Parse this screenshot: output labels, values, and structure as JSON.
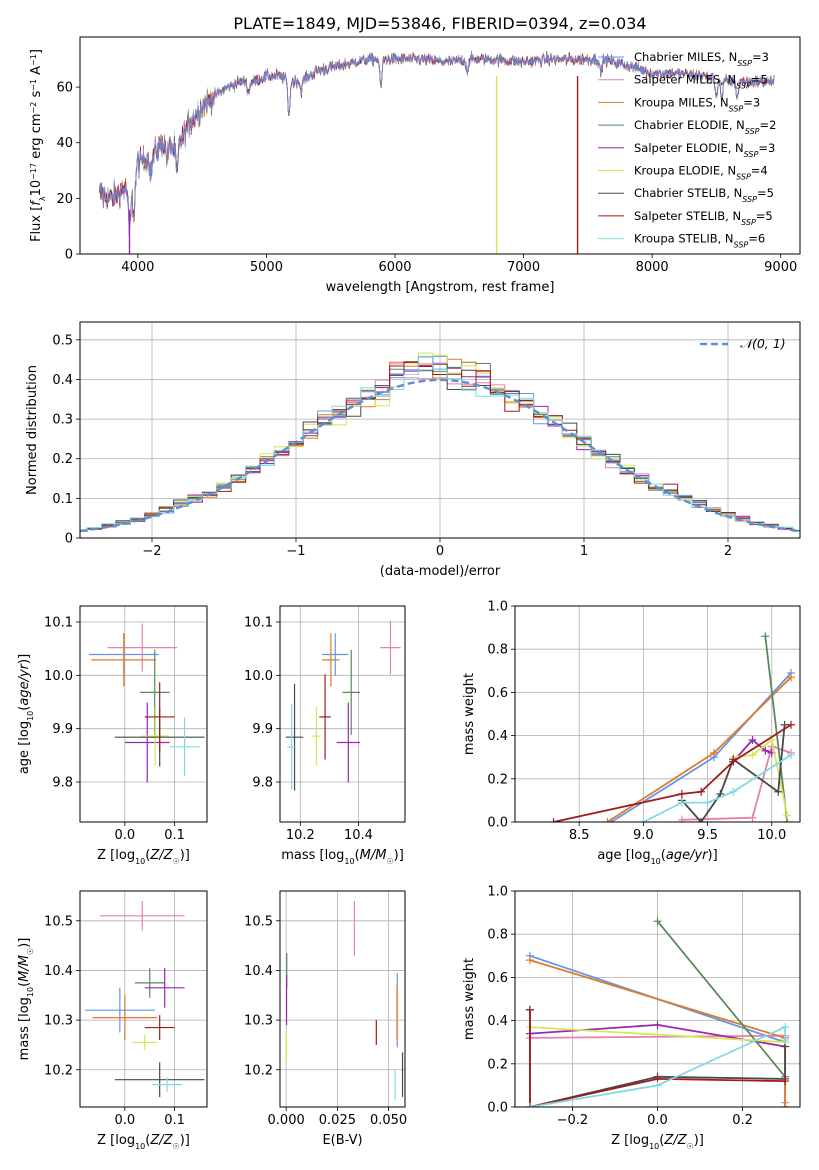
{
  "figure_title": "PLATE=1849, MJD=53846, FIBERID=0394, z=0.034",
  "models": [
    {
      "name": "Chabrier MILES",
      "n": "3",
      "color": "#6495ed"
    },
    {
      "name": "Salpeter MILES",
      "n": "5",
      "color": "#e87fb3"
    },
    {
      "name": "Kroupa MILES",
      "n": "3",
      "color": "#e07b26"
    },
    {
      "name": "Chabrier ELODIE",
      "n": "2",
      "color": "#5a8a5e"
    },
    {
      "name": "Salpeter ELODIE",
      "n": "3",
      "color": "#9b27b0"
    },
    {
      "name": "Kroupa ELODIE",
      "n": "4",
      "color": "#d6e654"
    },
    {
      "name": "Chabrier STELIB",
      "n": "5",
      "color": "#484848"
    },
    {
      "name": "Salpeter STELIB",
      "n": "5",
      "color": "#a01c1c"
    },
    {
      "name": "Kroupa STELIB",
      "n": "6",
      "color": "#7fdbe0"
    }
  ],
  "chart_data": [
    {
      "id": "spectrum",
      "type": "line",
      "xlabel": "wavelength [Angstrom, rest frame]",
      "ylabel": "Flux [f_λ10^-17 erg cm^-2 s^-1 A^-1]",
      "xlim": [
        3550,
        9150
      ],
      "ylim": [
        0,
        78
      ],
      "xticks": [
        4000,
        5000,
        6000,
        7000,
        8000,
        9000
      ],
      "yticks": [
        0,
        20,
        40,
        60
      ],
      "grid": false,
      "legend": "top-right",
      "series": "one spectrum per model (9 overlapping lines)",
      "continuum_points": [
        [
          3700,
          22
        ],
        [
          3800,
          20
        ],
        [
          3900,
          24
        ],
        [
          3950,
          21
        ],
        [
          4000,
          33
        ],
        [
          4100,
          35
        ],
        [
          4200,
          40
        ],
        [
          4300,
          38
        ],
        [
          4400,
          47
        ],
        [
          4500,
          53
        ],
        [
          4600,
          57
        ],
        [
          4700,
          60
        ],
        [
          4800,
          62
        ],
        [
          4900,
          62
        ],
        [
          5000,
          64
        ],
        [
          5100,
          64
        ],
        [
          5200,
          62
        ],
        [
          5300,
          63
        ],
        [
          5400,
          66
        ],
        [
          5500,
          67
        ],
        [
          5600,
          68
        ],
        [
          5700,
          69
        ],
        [
          5800,
          70
        ],
        [
          5900,
          70
        ],
        [
          6000,
          70
        ],
        [
          6200,
          70
        ],
        [
          6400,
          69
        ],
        [
          6600,
          70
        ],
        [
          6800,
          70
        ],
        [
          7000,
          69
        ],
        [
          7200,
          70
        ],
        [
          7400,
          70
        ],
        [
          7600,
          70
        ],
        [
          7800,
          68
        ],
        [
          8000,
          65
        ],
        [
          8200,
          65
        ],
        [
          8400,
          64
        ],
        [
          8600,
          62
        ],
        [
          8800,
          62
        ],
        [
          8950,
          62
        ]
      ],
      "absorption_features": [
        [
          3934,
          13
        ],
        [
          3969,
          11
        ],
        [
          4102,
          6
        ],
        [
          4227,
          5
        ],
        [
          4304,
          9
        ],
        [
          4861,
          4
        ],
        [
          5175,
          12
        ],
        [
          5270,
          4
        ],
        [
          5890,
          10
        ],
        [
          6563,
          4
        ],
        [
          7600,
          5
        ],
        [
          8498,
          6
        ],
        [
          8542,
          7
        ],
        [
          8662,
          6
        ]
      ],
      "deep_dropouts": [
        [
          3935,
          0
        ],
        [
          6790,
          0
        ],
        [
          7420,
          0
        ]
      ]
    },
    {
      "id": "residuals",
      "type": "histogram",
      "xlabel": "(data-model)/error",
      "ylabel": "Normed distribution",
      "xlim": [
        -2.5,
        2.5
      ],
      "ylim": [
        0,
        0.545
      ],
      "xticks": [
        -2,
        -1,
        0,
        1,
        2
      ],
      "yticks": [
        0.0,
        0.1,
        0.2,
        0.3,
        0.4,
        0.5
      ],
      "grid": true,
      "legend": "top-right",
      "reference_label": "𝒩(0, 1)",
      "reference_curve": "normal(0,1) pdf",
      "bin_width": 0.1,
      "series_note": "one step histogram per model"
    },
    {
      "id": "age_vs_Z",
      "type": "scatter",
      "xlabel": "Z [log10(Z/Z☉)]",
      "ylabel": "age  [log10(age/yr)]",
      "xlim": [
        -0.09,
        0.165
      ],
      "ylim": [
        9.725,
        10.13
      ],
      "xticks": [
        0.0,
        0.1
      ],
      "xticklabels": [
        "0.0",
        "0.1"
      ],
      "yticks": [
        9.8,
        9.9,
        10.0,
        10.1
      ],
      "yticklabels": [
        "9.8",
        "9.9",
        "10.0",
        "10.1"
      ],
      "grid": true,
      "points": [
        {
          "x": -0.002,
          "y": 10.039,
          "xerr": 0.07,
          "yerr": 0.04
        },
        {
          "x": 0.035,
          "y": 10.052,
          "xerr": 0.07,
          "yerr": 0.045
        },
        {
          "x": -0.002,
          "y": 10.029,
          "xerr": 0.065,
          "yerr": 0.05
        },
        {
          "x": 0.06,
          "y": 9.968,
          "xerr": 0.03,
          "yerr": 0.08
        },
        {
          "x": 0.045,
          "y": 9.874,
          "xerr": 0.045,
          "yerr": 0.075
        },
        {
          "x": 0.061,
          "y": 9.886,
          "xerr": 0.027,
          "yerr": 0.055
        },
        {
          "x": 0.07,
          "y": 9.884,
          "xerr": 0.09,
          "yerr": 0.055
        },
        {
          "x": 0.07,
          "y": 9.922,
          "xerr": 0.03,
          "yerr": 0.065
        },
        {
          "x": 0.12,
          "y": 9.866,
          "xerr": 0.03,
          "yerr": 0.055
        }
      ]
    },
    {
      "id": "age_vs_mass",
      "type": "scatter",
      "xlabel": "mass [log10(M/M☉)]",
      "ylabel": "",
      "xlim": [
        10.13,
        10.56
      ],
      "ylim": [
        9.725,
        10.13
      ],
      "xticks": [
        10.2,
        10.4
      ],
      "xticklabels": [
        "10.2",
        "10.4"
      ],
      "yticks": [
        9.8,
        9.9,
        10.0,
        10.1
      ],
      "yticklabels": [
        "9.8",
        "9.9",
        "10.0",
        "10.1"
      ],
      "grid": true,
      "points": [
        {
          "x": 10.32,
          "y": 10.039,
          "xerr": 0.045,
          "yerr": 0.04
        },
        {
          "x": 10.51,
          "y": 10.052,
          "xerr": 0.035,
          "yerr": 0.05
        },
        {
          "x": 10.305,
          "y": 10.029,
          "xerr": 0.03,
          "yerr": 0.05
        },
        {
          "x": 10.375,
          "y": 9.968,
          "xerr": 0.03,
          "yerr": 0.08
        },
        {
          "x": 10.365,
          "y": 9.874,
          "xerr": 0.04,
          "yerr": 0.075
        },
        {
          "x": 10.255,
          "y": 9.886,
          "xerr": 0.015,
          "yerr": 0.055
        },
        {
          "x": 10.18,
          "y": 9.884,
          "xerr": 0.03,
          "yerr": 0.1
        },
        {
          "x": 10.285,
          "y": 9.922,
          "xerr": 0.02,
          "yerr": 0.08
        },
        {
          "x": 10.17,
          "y": 9.866,
          "xerr": 0.015,
          "yerr": 0.08
        }
      ]
    },
    {
      "id": "weight_vs_age",
      "type": "line",
      "xlabel": "age  [log10(age/yr)]",
      "ylabel": "mass weight",
      "xlim": [
        8.0,
        10.22
      ],
      "ylim": [
        0,
        1
      ],
      "xticks": [
        8.5,
        9.0,
        9.5,
        10.0
      ],
      "xticklabels": [
        "8.5",
        "9.0",
        "9.5",
        "10.0"
      ],
      "yticks": [
        0.0,
        0.2,
        0.4,
        0.6,
        0.8,
        1.0
      ],
      "yticklabels": [
        "0.0",
        "0.2",
        "0.4",
        "0.6",
        "0.8",
        "1.0"
      ],
      "grid": true,
      "series": [
        {
          "x": [
            8.75,
            9.55,
            10.15
          ],
          "y": [
            0.0,
            0.3,
            0.69
          ]
        },
        {
          "x": [
            9.3,
            9.85,
            10.0,
            10.15
          ],
          "y": [
            0.01,
            0.02,
            0.35,
            0.32
          ]
        },
        {
          "x": [
            8.72,
            9.55,
            10.15
          ],
          "y": [
            0.0,
            0.32,
            0.67
          ]
        },
        {
          "x": [
            9.95,
            10.12
          ],
          "y": [
            0.86,
            0.0
          ]
        },
        {
          "x": [
            9.7,
            9.85,
            9.95,
            10.0
          ],
          "y": [
            0.28,
            0.38,
            0.33,
            0.32
          ]
        },
        {
          "x": [
            9.7,
            9.85,
            10.0,
            10.12
          ],
          "y": [
            0.3,
            0.31,
            0.38,
            0.03
          ]
        },
        {
          "x": [
            9.3,
            9.45,
            9.6,
            9.7,
            10.05,
            10.1
          ],
          "y": [
            0.1,
            0.0,
            0.13,
            0.29,
            0.14,
            0.45
          ]
        },
        {
          "x": [
            8.3,
            9.3,
            9.45,
            9.7,
            10.15
          ],
          "y": [
            0.0,
            0.13,
            0.14,
            0.28,
            0.45
          ]
        },
        {
          "x": [
            9.0,
            9.3,
            9.5,
            9.7,
            10.15
          ],
          "y": [
            0.0,
            0.09,
            0.09,
            0.14,
            0.31
          ]
        }
      ]
    },
    {
      "id": "mass_vs_Z",
      "type": "scatter",
      "xlabel": "Z [log10(Z/Z☉)]",
      "ylabel": "mass [log10(M/M☉)]",
      "xlim": [
        -0.09,
        0.165
      ],
      "ylim": [
        10.125,
        10.56
      ],
      "xticks": [
        0.0,
        0.1
      ],
      "xticklabels": [
        "0.0",
        "0.1"
      ],
      "yticks": [
        10.2,
        10.3,
        10.4,
        10.5
      ],
      "yticklabels": [
        "10.2",
        "10.3",
        "10.4",
        "10.5"
      ],
      "grid": true,
      "points": [
        {
          "x": -0.01,
          "y": 10.32,
          "xerr": 0.07,
          "yerr": 0.045
        },
        {
          "x": 0.035,
          "y": 10.51,
          "xerr": 0.085,
          "yerr": 0.03
        },
        {
          "x": 0.0,
          "y": 10.305,
          "xerr": 0.065,
          "yerr": 0.045
        },
        {
          "x": 0.05,
          "y": 10.375,
          "xerr": 0.03,
          "yerr": 0.03
        },
        {
          "x": 0.08,
          "y": 10.365,
          "xerr": 0.04,
          "yerr": 0.04
        },
        {
          "x": 0.04,
          "y": 10.255,
          "xerr": 0.025,
          "yerr": 0.015
        },
        {
          "x": 0.07,
          "y": 10.18,
          "xerr": 0.09,
          "yerr": 0.035
        },
        {
          "x": 0.07,
          "y": 10.285,
          "xerr": 0.03,
          "yerr": 0.025
        },
        {
          "x": 0.085,
          "y": 10.17,
          "xerr": 0.03,
          "yerr": 0.015
        }
      ]
    },
    {
      "id": "mass_vs_ebv",
      "type": "scatter",
      "xlabel": "E(B-V)",
      "ylabel": "",
      "xlim": [
        -0.003,
        0.058
      ],
      "ylim": [
        10.125,
        10.56
      ],
      "xticks": [
        0.0,
        0.025,
        0.05
      ],
      "xticklabels": [
        "0.000",
        "0.025",
        "0.050"
      ],
      "yticks": [
        10.2,
        10.3,
        10.4,
        10.5
      ],
      "yticklabels": [
        "10.2",
        "10.3",
        "10.4",
        "10.5"
      ],
      "grid": true,
      "points": [
        {
          "x": 0.0542,
          "y": 10.32,
          "yerr": 0.075
        },
        {
          "x": 0.0333,
          "y": 10.485,
          "yerr": 0.055
        },
        {
          "x": 0.0541,
          "y": 10.315,
          "yerr": 0.055
        },
        {
          "x": 0.0003,
          "y": 10.4,
          "yerr": 0.035
        },
        {
          "x": 0.0002,
          "y": 10.34,
          "yerr": 0.05
        },
        {
          "x": 0.0002,
          "y": 10.245,
          "yerr": 0.025
        },
        {
          "x": 0.0568,
          "y": 10.19,
          "yerr": 0.045
        },
        {
          "x": 0.044,
          "y": 10.275,
          "yerr": 0.025
        },
        {
          "x": 0.0532,
          "y": 10.17,
          "yerr": 0.03
        }
      ]
    },
    {
      "id": "weight_vs_Z",
      "type": "line",
      "xlabel": "Z [log10(Z/Z☉)]",
      "ylabel": "mass weight",
      "xlim": [
        -0.335,
        0.335
      ],
      "ylim": [
        0,
        1
      ],
      "xticks": [
        -0.2,
        0.0,
        0.2
      ],
      "xticklabels": [
        "−0.2",
        "0.0",
        "0.2"
      ],
      "yticks": [
        0.0,
        0.2,
        0.4,
        0.6,
        0.8,
        1.0
      ],
      "yticklabels": [
        "0.0",
        "0.2",
        "0.4",
        "0.6",
        "0.8",
        "1.0"
      ],
      "grid": true,
      "series": [
        {
          "x": [
            -0.3,
            0.3,
            0.3
          ],
          "y": [
            0.7,
            0.3,
            0.0
          ]
        },
        {
          "x": [
            -0.3,
            0.3,
            0.3
          ],
          "y": [
            0.32,
            0.33,
            0.02
          ]
        },
        {
          "x": [
            -0.3,
            0.3,
            0.3
          ],
          "y": [
            0.68,
            0.32,
            0.0
          ]
        },
        {
          "x": [
            0.0,
            0.3
          ],
          "y": [
            0.86,
            0.14
          ]
        },
        {
          "x": [
            -0.3,
            0.0,
            0.3
          ],
          "y": [
            0.34,
            0.38,
            0.28
          ]
        },
        {
          "x": [
            -0.3,
            0.3
          ],
          "y": [
            0.37,
            0.3
          ]
        },
        {
          "x": [
            -0.3,
            -0.3,
            0.0,
            0.3,
            0.3
          ],
          "y": [
            0.45,
            0.0,
            0.14,
            0.13,
            0.28
          ]
        },
        {
          "x": [
            -0.3,
            -0.3,
            0.0,
            0.3
          ],
          "y": [
            0.45,
            0.0,
            0.13,
            0.12
          ]
        },
        {
          "x": [
            -0.3,
            0.0,
            0.3,
            0.3
          ],
          "y": [
            0.0,
            0.1,
            0.37,
            0.31
          ]
        }
      ]
    }
  ]
}
